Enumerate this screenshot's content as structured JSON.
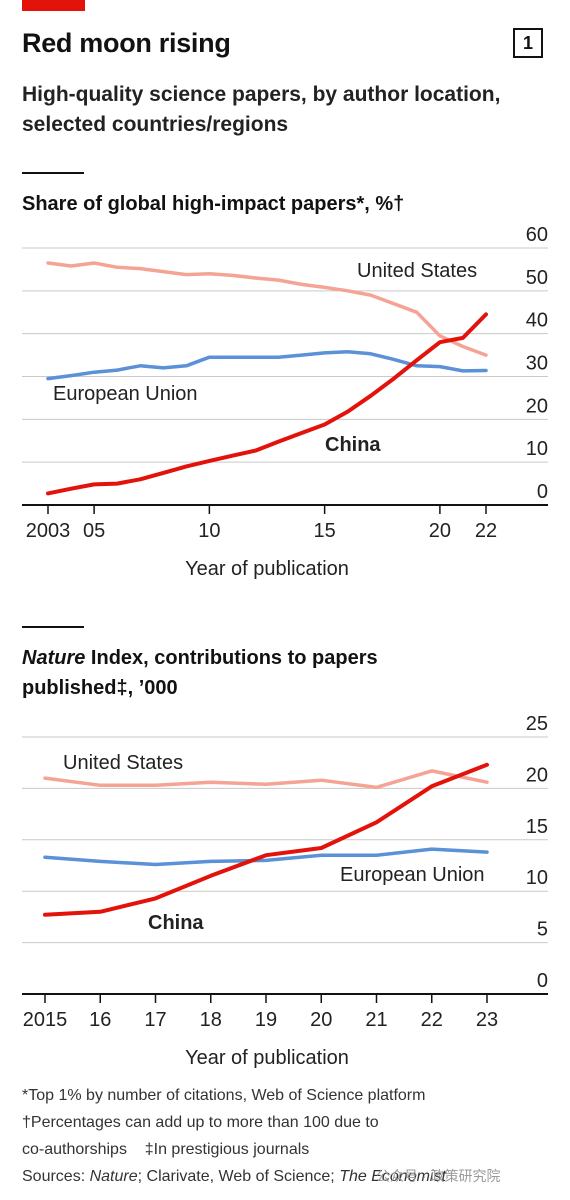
{
  "header": {
    "title": "Red moon rising",
    "badge": "1",
    "subtitle": "High-quality science papers, by author location, selected countries/regions"
  },
  "chart_data": [
    {
      "type": "line",
      "title_main": "Share of global high-impact papers",
      "title_marks": "*, %†",
      "xlabel": "Year of publication",
      "x_ticks": [
        "2003",
        "05",
        "10",
        "15",
        "20",
        "22"
      ],
      "x_tick_values": [
        2003,
        2005,
        2010,
        2015,
        2020,
        2022
      ],
      "y_ticks": [
        0,
        10,
        20,
        30,
        40,
        50,
        60
      ],
      "ylim": [
        0,
        60
      ],
      "xlim": [
        2003,
        2022
      ],
      "x": [
        2003,
        2004,
        2005,
        2006,
        2007,
        2008,
        2009,
        2010,
        2011,
        2012,
        2013,
        2014,
        2015,
        2016,
        2017,
        2018,
        2019,
        2020,
        2021,
        2022
      ],
      "series": [
        {
          "name": "United States",
          "color": "#f4a394",
          "values": [
            56.5,
            55.8,
            56.5,
            55.5,
            55.2,
            54.5,
            53.8,
            54,
            53.6,
            53,
            52.5,
            51.5,
            50.8,
            50,
            49,
            47,
            45,
            39.5,
            37,
            35
          ]
        },
        {
          "name": "European Union",
          "color": "#5b91d6",
          "values": [
            29.5,
            30.2,
            31,
            31.5,
            32.5,
            32,
            32.5,
            34.5,
            34.5,
            34.5,
            34.5,
            35,
            35.5,
            35.8,
            35.3,
            34,
            32.5,
            32.3,
            31.3,
            31.4
          ]
        },
        {
          "name": "China",
          "color": "#e3120b",
          "values": [
            2.7,
            3.8,
            4.8,
            5,
            6,
            7.5,
            9,
            10.3,
            11.5,
            12.7,
            14.8,
            16.8,
            18.8,
            21.8,
            25.5,
            29.5,
            33.8,
            38,
            39,
            44.5
          ]
        }
      ],
      "grid": true
    },
    {
      "type": "line",
      "title_main_italic": "Nature",
      "title_main_rest": " Index, contributions to papers published",
      "title_marks": "‡, ’000",
      "xlabel": "Year of publication",
      "x_ticks": [
        "2015",
        "16",
        "17",
        "18",
        "19",
        "20",
        "21",
        "22",
        "23"
      ],
      "x_tick_values": [
        2015,
        2016,
        2017,
        2018,
        2019,
        2020,
        2021,
        2022,
        2023
      ],
      "y_ticks": [
        0,
        5,
        10,
        15,
        20,
        25
      ],
      "ylim": [
        0,
        25
      ],
      "xlim": [
        2015,
        2023
      ],
      "x": [
        2015,
        2016,
        2017,
        2018,
        2019,
        2020,
        2021,
        2022,
        2023
      ],
      "series": [
        {
          "name": "United States",
          "color": "#f4a394",
          "values": [
            21,
            20.3,
            20.3,
            20.6,
            20.4,
            20.8,
            20.1,
            21.7,
            20.6
          ]
        },
        {
          "name": "European Union",
          "color": "#5b91d6",
          "values": [
            13.3,
            12.9,
            12.6,
            12.9,
            13,
            13.5,
            13.5,
            14.1,
            13.8
          ]
        },
        {
          "name": "China",
          "color": "#e3120b",
          "values": [
            7.7,
            8,
            9.3,
            11.5,
            13.5,
            14.2,
            16.7,
            20.2,
            22.3
          ]
        }
      ],
      "grid": true
    }
  ],
  "footnotes": {
    "line1": "*Top 1% by number of citations, Web of Science platform",
    "line2": "†Percentages can add up to more than 100 due to",
    "line3a": "co-authorships",
    "line3b": "‡In prestigious journals",
    "sources_label": "Sources: ",
    "sources_italic": "Nature",
    "sources_rest": "; Clarivate, Web of Science; ",
    "brand": "The Economist",
    "watermark": "公众号 · 政策研究院"
  }
}
